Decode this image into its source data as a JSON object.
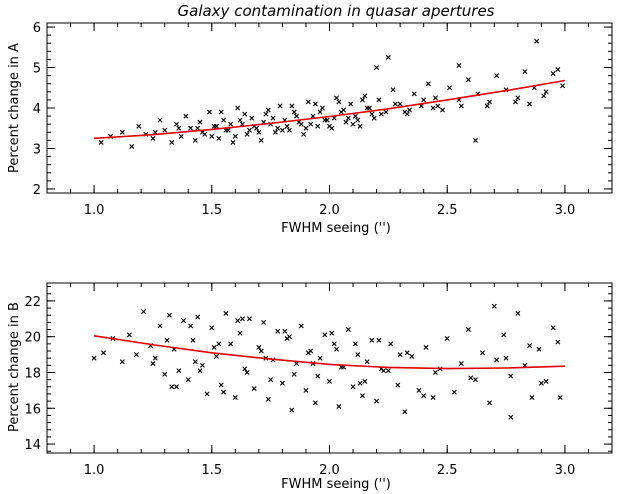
{
  "title": "Galaxy contamination in quasar apertures",
  "chart_data": [
    {
      "type": "scatter",
      "xlabel": "FWHM seeing ('')",
      "ylabel": "Percent change in A",
      "xlim": [
        0.8,
        3.2
      ],
      "ylim": [
        1.9,
        6.1
      ],
      "xticks": [
        1.0,
        1.5,
        2.0,
        2.5,
        3.0
      ],
      "xtick_labels": [
        "1.0",
        "1.5",
        "2.0",
        "2.5",
        "3.0"
      ],
      "yticks": [
        2,
        3,
        4,
        5,
        6
      ],
      "ytick_labels": [
        "2",
        "3",
        "4",
        "5",
        "6"
      ],
      "grid": false,
      "marker": "x",
      "marker_color": "#000000",
      "fit_color": "#e00000",
      "fit_x": [
        1.0,
        1.25,
        1.5,
        1.75,
        2.0,
        2.25,
        2.5,
        2.75,
        3.0
      ],
      "fit_y": [
        3.25,
        3.34,
        3.47,
        3.62,
        3.79,
        3.98,
        4.2,
        4.43,
        4.68
      ],
      "points_x": [
        1.03,
        1.07,
        1.12,
        1.16,
        1.19,
        1.22,
        1.25,
        1.28,
        1.3,
        1.33,
        1.35,
        1.37,
        1.39,
        1.41,
        1.43,
        1.45,
        1.47,
        1.49,
        1.51,
        1.53,
        1.55,
        1.57,
        1.59,
        1.61,
        1.63,
        1.65,
        1.67,
        1.69,
        1.71,
        1.73,
        1.75,
        1.77,
        1.79,
        1.81,
        1.83,
        1.85,
        1.87,
        1.89,
        1.91,
        1.93,
        1.95,
        1.97,
        1.99,
        2.01,
        2.03,
        2.05,
        2.07,
        2.09,
        2.11,
        2.13,
        2.15,
        2.17,
        2.19,
        2.21,
        2.24,
        2.27,
        2.3,
        2.33,
        2.36,
        2.39,
        2.42,
        2.45,
        2.48,
        2.51,
        2.55,
        2.59,
        2.63,
        2.67,
        2.71,
        2.75,
        2.79,
        2.83,
        2.87,
        2.91,
        2.95,
        2.99,
        1.44,
        1.52,
        1.58,
        1.62,
        1.66,
        1.72,
        1.76,
        1.82,
        1.86,
        1.92,
        1.96,
        2.02,
        2.06,
        2.12,
        2.16,
        2.22,
        2.28,
        2.34,
        2.4,
        2.46,
        1.26,
        1.36,
        1.46,
        1.56,
        1.68,
        1.78,
        1.88,
        1.98,
        2.08,
        2.18,
        2.32,
        2.44,
        2.56,
        2.68,
        2.8,
        2.92,
        2.25,
        2.55,
        2.88,
        2.97,
        2.62,
        2.85,
        2.2,
        1.5,
        1.54,
        1.6,
        1.64,
        1.7,
        1.74,
        1.8,
        1.84,
        1.9,
        1.94,
        2.0,
        2.04,
        2.1,
        2.14
      ],
      "points_y": [
        3.15,
        3.3,
        3.4,
        3.05,
        3.55,
        3.35,
        3.25,
        3.7,
        3.45,
        3.15,
        3.6,
        3.3,
        3.8,
        3.5,
        3.2,
        3.65,
        3.35,
        3.9,
        3.55,
        3.25,
        3.7,
        3.45,
        3.15,
        4.0,
        3.6,
        3.35,
        3.75,
        3.5,
        3.2,
        3.85,
        3.6,
        3.4,
        4.05,
        3.7,
        3.45,
        3.9,
        3.65,
        3.35,
        4.15,
        3.8,
        3.55,
        4.0,
        3.7,
        3.5,
        4.25,
        3.9,
        3.65,
        4.1,
        3.8,
        3.55,
        4.3,
        4.0,
        3.75,
        4.2,
        3.9,
        4.45,
        4.1,
        3.85,
        4.35,
        4.05,
        4.6,
        4.25,
        3.95,
        4.5,
        4.2,
        4.7,
        4.35,
        4.05,
        4.8,
        4.45,
        4.15,
        4.9,
        4.5,
        4.3,
        4.85,
        4.55,
        3.5,
        3.55,
        3.6,
        3.7,
        3.45,
        3.65,
        3.75,
        3.55,
        3.8,
        3.6,
        3.9,
        3.75,
        3.95,
        3.7,
        4.0,
        3.85,
        4.1,
        3.95,
        4.2,
        4.05,
        3.4,
        3.5,
        3.4,
        3.45,
        3.55,
        3.5,
        3.6,
        3.7,
        3.75,
        3.85,
        3.9,
        4.0,
        4.05,
        4.15,
        4.25,
        4.4,
        5.25,
        5.05,
        5.65,
        4.95,
        3.2,
        4.1,
        5.0,
        3.3,
        3.9,
        3.3,
        3.85,
        3.4,
        3.95,
        3.45,
        4.05,
        3.5,
        4.1,
        3.55,
        4.15,
        3.6,
        4.2
      ]
    },
    {
      "type": "scatter",
      "xlabel": "FWHM seeing ('')",
      "ylabel": "Percent change in B",
      "xlim": [
        0.8,
        3.2
      ],
      "ylim": [
        13.5,
        23.0
      ],
      "xticks": [
        1.0,
        1.5,
        2.0,
        2.5,
        3.0
      ],
      "xtick_labels": [
        "1.0",
        "1.5",
        "2.0",
        "2.5",
        "3.0"
      ],
      "yticks": [
        14,
        16,
        18,
        20,
        22
      ],
      "ytick_labels": [
        "14",
        "16",
        "18",
        "20",
        "22"
      ],
      "grid": false,
      "marker": "x",
      "marker_color": "#000000",
      "fit_color": "#e00000",
      "fit_x": [
        1.0,
        1.25,
        1.5,
        1.75,
        2.0,
        2.25,
        2.5,
        2.75,
        3.0
      ],
      "fit_y": [
        20.05,
        19.55,
        19.1,
        18.75,
        18.45,
        18.28,
        18.22,
        18.25,
        18.35
      ],
      "points_x": [
        1.0,
        1.04,
        1.08,
        1.12,
        1.15,
        1.18,
        1.21,
        1.24,
        1.26,
        1.28,
        1.3,
        1.32,
        1.34,
        1.36,
        1.38,
        1.4,
        1.42,
        1.44,
        1.46,
        1.48,
        1.5,
        1.52,
        1.54,
        1.56,
        1.58,
        1.6,
        1.62,
        1.64,
        1.66,
        1.68,
        1.7,
        1.72,
        1.74,
        1.76,
        1.78,
        1.8,
        1.82,
        1.84,
        1.86,
        1.88,
        1.9,
        1.92,
        1.94,
        1.96,
        1.98,
        2.0,
        2.02,
        2.04,
        2.06,
        2.08,
        2.1,
        2.12,
        2.14,
        2.16,
        2.18,
        2.2,
        2.23,
        2.26,
        2.29,
        2.32,
        2.35,
        2.38,
        2.41,
        2.44,
        2.47,
        2.5,
        2.53,
        2.56,
        2.59,
        2.62,
        2.65,
        2.68,
        2.71,
        2.74,
        2.77,
        2.8,
        2.83,
        2.86,
        2.89,
        2.92,
        2.95,
        2.98,
        1.31,
        1.35,
        1.41,
        1.45,
        1.51,
        1.55,
        1.61,
        1.65,
        1.71,
        1.75,
        1.81,
        1.85,
        1.91,
        1.95,
        2.01,
        2.05,
        2.11,
        2.15,
        2.21,
        2.25,
        1.33,
        1.43,
        1.53,
        1.63,
        1.73,
        1.83,
        1.93,
        2.03,
        2.13,
        2.3,
        2.45,
        2.6,
        2.75,
        2.9,
        2.22,
        2.33,
        2.77,
        2.97,
        1.25,
        2.4,
        2.7,
        2.85
      ],
      "points_y": [
        18.8,
        19.1,
        19.9,
        18.6,
        20.1,
        19.0,
        21.4,
        19.5,
        18.8,
        20.6,
        17.9,
        21.2,
        19.3,
        18.1,
        20.9,
        17.6,
        19.8,
        21.1,
        18.4,
        16.8,
        20.5,
        18.9,
        17.3,
        21.3,
        19.6,
        16.6,
        20.2,
        18.2,
        21.0,
        17.1,
        19.4,
        20.8,
        16.5,
        18.7,
        20.3,
        17.4,
        19.9,
        15.9,
        18.5,
        20.6,
        17.0,
        19.2,
        16.3,
        18.8,
        20.1,
        17.5,
        19.6,
        16.1,
        18.3,
        20.4,
        17.2,
        19.0,
        16.7,
        18.6,
        19.8,
        16.4,
        18.1,
        19.6,
        17.3,
        15.8,
        18.9,
        17.0,
        19.4,
        16.6,
        18.2,
        19.9,
        16.9,
        18.5,
        20.4,
        17.6,
        19.1,
        16.3,
        18.7,
        20.1,
        17.8,
        21.3,
        18.4,
        16.6,
        19.3,
        17.5,
        20.5,
        16.6,
        19.8,
        17.2,
        20.6,
        18.1,
        19.4,
        16.9,
        20.9,
        18.0,
        19.2,
        17.6,
        20.3,
        17.9,
        19.1,
        17.8,
        20.2,
        18.3,
        19.6,
        17.5,
        19.8,
        18.1,
        17.2,
        18.6,
        19.6,
        21.0,
        18.8,
        20.0,
        18.5,
        19.3,
        17.4,
        19.0,
        18.0,
        17.7,
        18.8,
        17.4,
        18.2,
        19.1,
        15.5,
        19.7,
        18.5,
        16.7,
        21.7,
        19.5,
        18.9,
        19.2
      ]
    }
  ]
}
